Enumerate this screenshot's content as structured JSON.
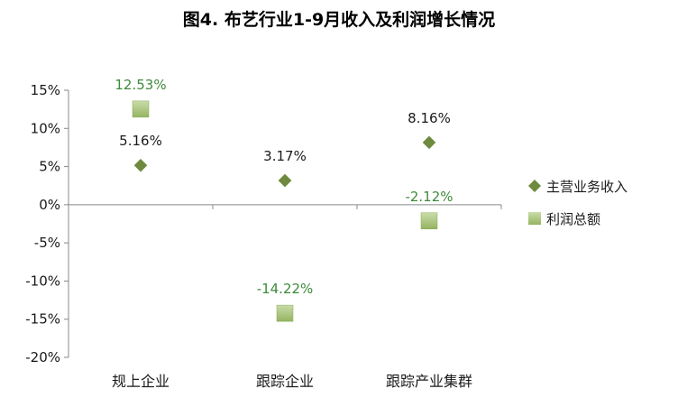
{
  "chart_data": {
    "type": "scatter",
    "title": "图4. 布艺行业1-9月收入及利润增长情况",
    "categories": [
      "规上企业",
      "跟踪企业",
      "跟踪产业集群"
    ],
    "ylim": [
      -20,
      15
    ],
    "yticks": [
      15,
      10,
      5,
      0,
      -5,
      -10,
      -15,
      -20
    ],
    "ytick_labels": [
      "15%",
      "10%",
      "5%",
      "0%",
      "-5%",
      "-10%",
      "-15%",
      "-20%"
    ],
    "grid": false,
    "legend_position": "right",
    "series": [
      {
        "name": "主营业务收入",
        "marker": "diamond",
        "color": "#6e8a3e",
        "label_color": "#1a1a1a",
        "values": [
          5.16,
          3.17,
          8.16
        ],
        "labels": [
          "5.16%",
          "3.17%",
          "8.16%"
        ]
      },
      {
        "name": "利润总额",
        "marker": "square",
        "color": "#a7c27a",
        "label_color": "#3d8a3a",
        "values": [
          12.53,
          -14.22,
          -2.12
        ],
        "labels": [
          "12.53%",
          "-14.22%",
          "-2.12%"
        ]
      }
    ]
  }
}
